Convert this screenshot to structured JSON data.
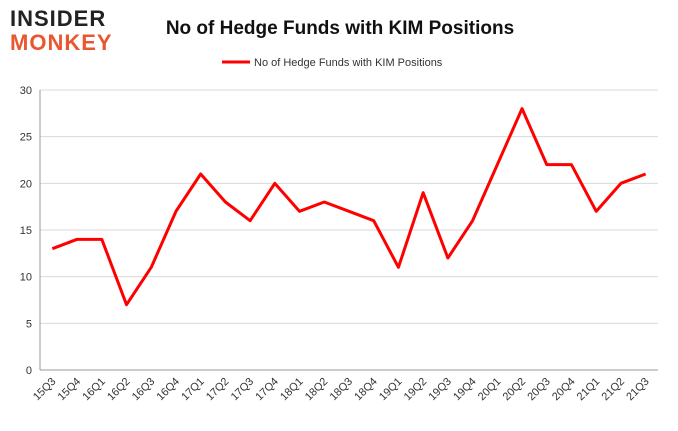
{
  "logo": {
    "line1": "INSIDER",
    "line2": "MONKEY"
  },
  "chart_data": {
    "type": "line",
    "title": "No of Hedge Funds with KIM Positions",
    "categories": [
      "15Q3",
      "15Q4",
      "16Q1",
      "16Q2",
      "16Q3",
      "16Q4",
      "17Q1",
      "17Q2",
      "17Q3",
      "17Q4",
      "18Q1",
      "18Q2",
      "18Q3",
      "18Q4",
      "19Q1",
      "19Q2",
      "19Q3",
      "19Q4",
      "20Q1",
      "20Q2",
      "20Q3",
      "20Q4",
      "21Q1",
      "21Q2",
      "21Q3"
    ],
    "series": [
      {
        "name": "No of Hedge Funds with KIM Positions",
        "color": "#ff0000",
        "values": [
          13,
          14,
          14,
          7,
          11,
          17,
          21,
          18,
          16,
          20,
          17,
          18,
          17,
          16,
          11,
          19,
          12,
          16,
          22,
          28,
          22,
          22,
          17,
          20,
          21
        ]
      }
    ],
    "ylim": [
      0,
      30
    ],
    "yticks": [
      0,
      5,
      10,
      15,
      20,
      25,
      30
    ],
    "grid": true,
    "legend": "top"
  }
}
